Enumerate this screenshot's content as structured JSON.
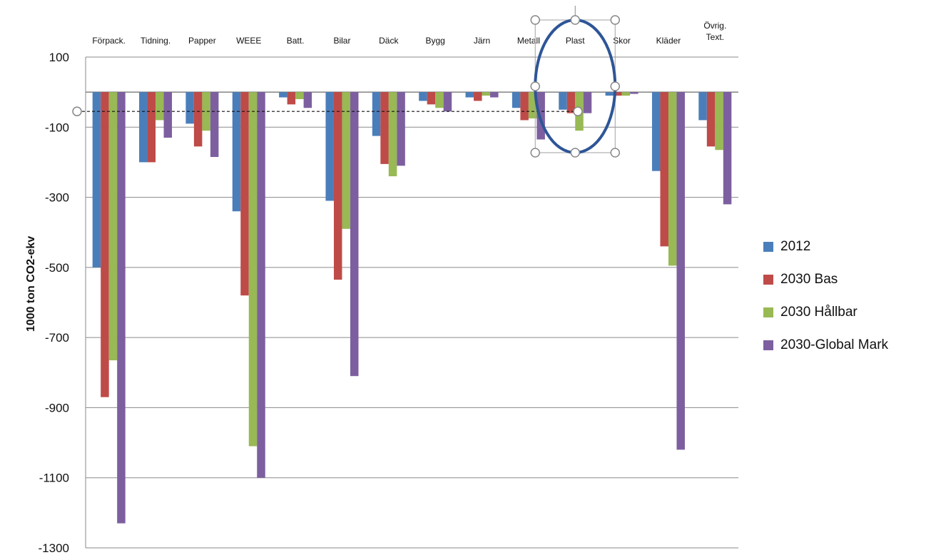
{
  "chart_data": {
    "type": "bar",
    "ylabel": "1000 ton CO2-ekv",
    "ylim": [
      -1300,
      100
    ],
    "yticks": [
      100,
      -100,
      -300,
      -500,
      -700,
      -900,
      -1100,
      -1300
    ],
    "grid": true,
    "legend_position": "right",
    "categories": [
      [
        "Förpack."
      ],
      [
        "Tidning."
      ],
      [
        "Papper"
      ],
      [
        "WEEE"
      ],
      [
        "Batt."
      ],
      [
        "Bilar"
      ],
      [
        "Däck"
      ],
      [
        "Bygg"
      ],
      [
        "Järn"
      ],
      [
        "Metall"
      ],
      [
        "Plast"
      ],
      [
        "Skor"
      ],
      [
        "Kläder"
      ],
      [
        "Övrig.",
        "Text."
      ]
    ],
    "series": [
      {
        "name": "2012",
        "color": "#4a7ebb",
        "values": [
          -500,
          -200,
          -90,
          -340,
          -15,
          -310,
          -125,
          -25,
          -15,
          -45,
          -50,
          -10,
          -225,
          -80
        ]
      },
      {
        "name": "2030 Bas",
        "color": "#be4b48",
        "values": [
          -870,
          -200,
          -155,
          -580,
          -35,
          -535,
          -205,
          -35,
          -25,
          -80,
          -60,
          -10,
          -440,
          -155
        ]
      },
      {
        "name": "2030 Hållbar",
        "color": "#98b954",
        "values": [
          -765,
          -80,
          -110,
          -1010,
          -20,
          -390,
          -240,
          -45,
          -10,
          -75,
          -110,
          -10,
          -495,
          -165
        ]
      },
      {
        "name": "2030-Global Mark",
        "color": "#7d5fa0",
        "values": [
          -1230,
          -130,
          -185,
          -1100,
          -45,
          -810,
          -210,
          -55,
          -15,
          -135,
          -60,
          -5,
          -1020,
          -320
        ]
      }
    ],
    "reference_line": -55,
    "highlight_category": "Plast",
    "highlight_color": "#2e5597"
  }
}
